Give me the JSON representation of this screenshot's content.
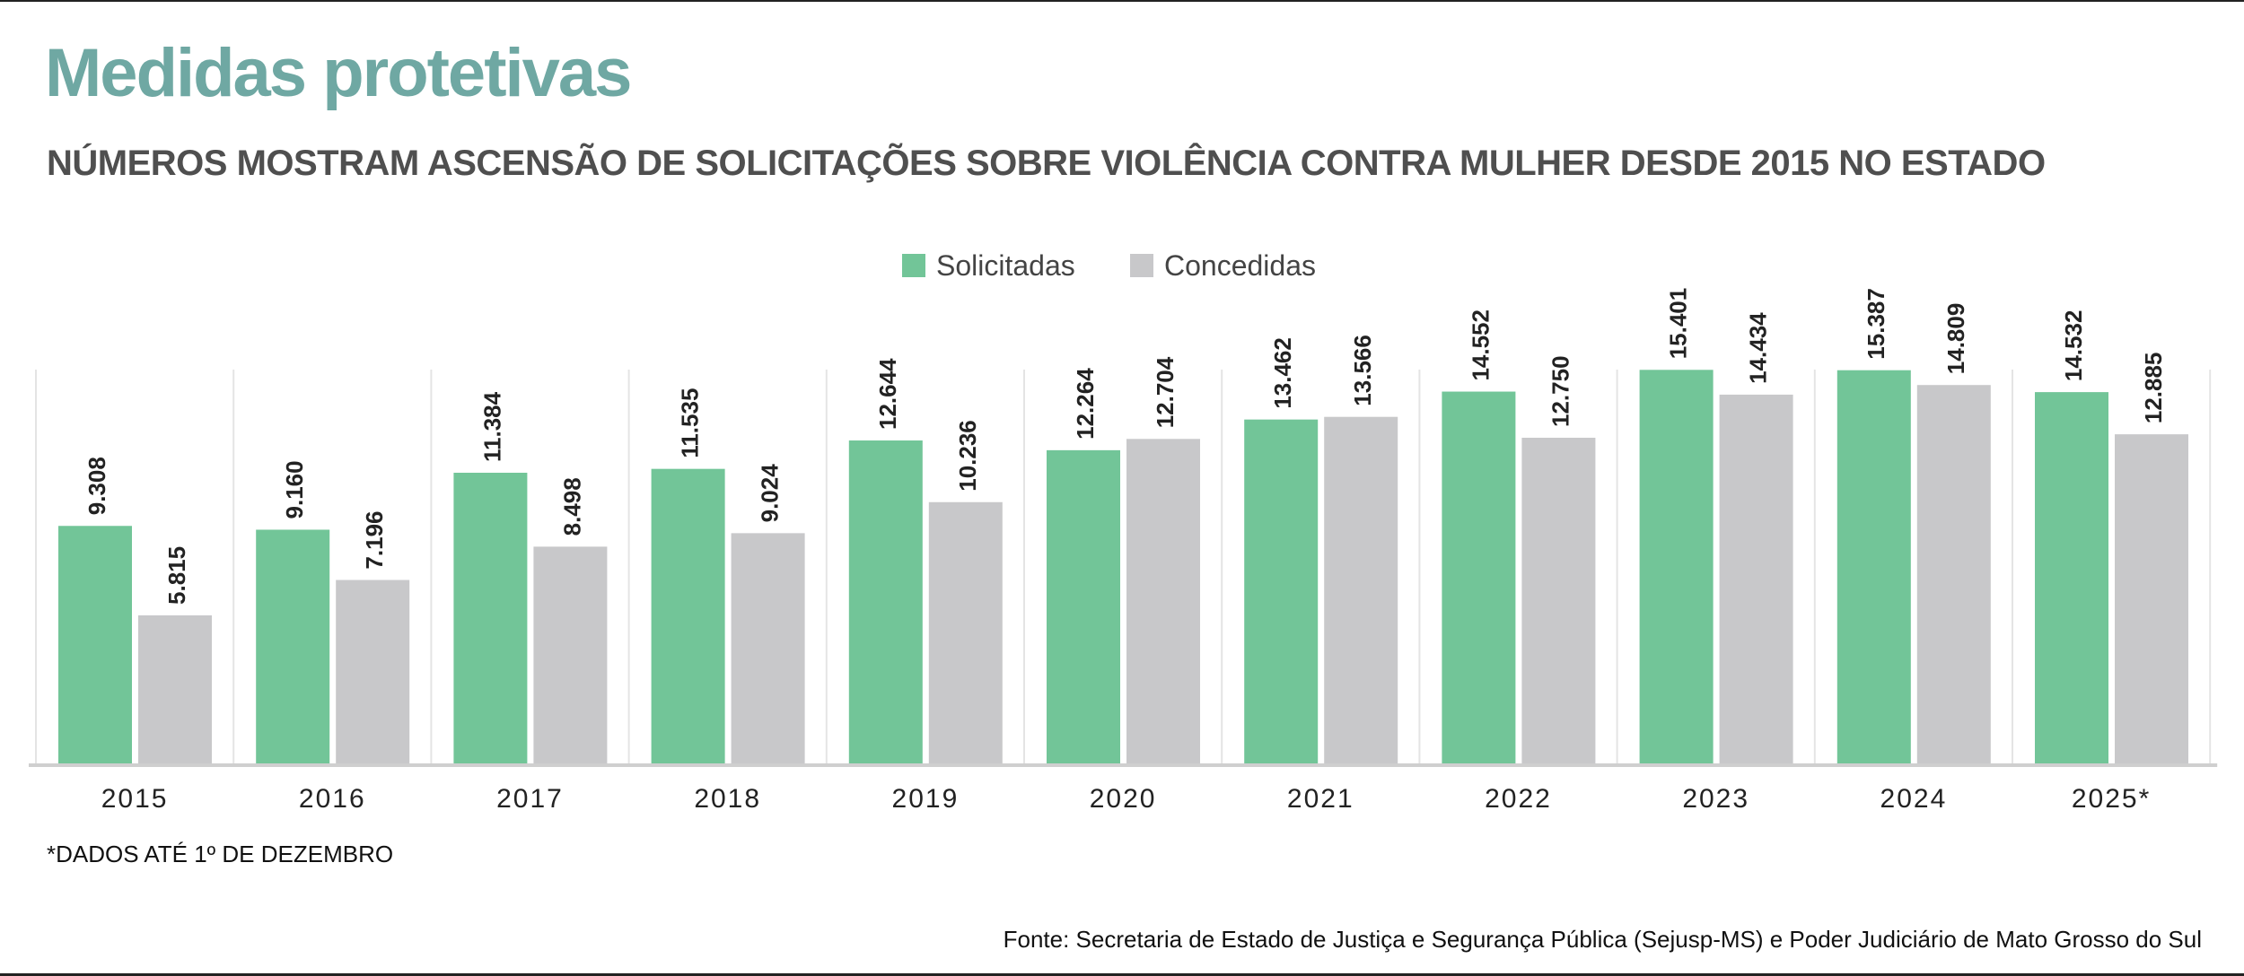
{
  "header": {
    "title": "Medidas protetivas",
    "subtitle": "NÚMEROS MOSTRAM ASCENSÃO DE SOLICITAÇÕES SOBRE VIOLÊNCIA CONTRA MULHER DESDE 2015 NO ESTADO"
  },
  "colors": {
    "solicitadas": "#72c598",
    "concedidas": "#c8c8ca",
    "title": "#6fa8a3"
  },
  "chart_data": {
    "type": "bar",
    "title": "Medidas protetivas",
    "categories": [
      "2015",
      "2016",
      "2017",
      "2018",
      "2019",
      "2020",
      "2021",
      "2022",
      "2023",
      "2024",
      "2025*"
    ],
    "series": [
      {
        "name": "Solicitadas",
        "values": [
          9308,
          9160,
          11384,
          11535,
          12644,
          12264,
          13462,
          14552,
          15401,
          15387,
          14532
        ],
        "labels": [
          "9.308",
          "9.160",
          "11.384",
          "11.535",
          "12.644",
          "12.264",
          "13.462",
          "14.552",
          "15.401",
          "15.387",
          "14.532"
        ]
      },
      {
        "name": "Concedidas",
        "values": [
          5815,
          7196,
          8498,
          9024,
          10236,
          12704,
          13566,
          12750,
          14434,
          14809,
          12885
        ],
        "labels": [
          "5.815",
          "7.196",
          "8.498",
          "9.024",
          "10.236",
          "12.704",
          "13.566",
          "12.750",
          "14.434",
          "14.809",
          "12.885"
        ]
      }
    ],
    "ylim": [
      0,
      17500
    ],
    "legend": "top-center",
    "grid": false
  },
  "footer": {
    "footnote": "*DADOS ATÉ 1º DE DEZEMBRO",
    "source": "Fonte: Secretaria de Estado de Justiça e Segurança Pública (Sejusp-MS) e Poder Judiciário de Mato Grosso do Sul"
  }
}
